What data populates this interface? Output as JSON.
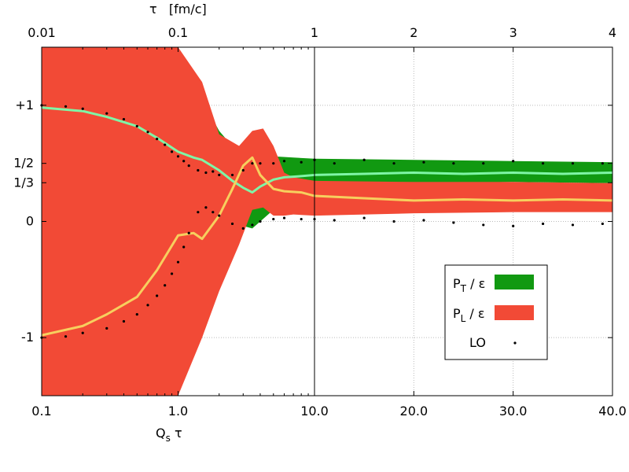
{
  "chart_data": {
    "type": "area",
    "title": "",
    "x_axis_bottom": {
      "label_main": "Q",
      "label_sub": "s",
      "label_tail": " τ",
      "segments": [
        {
          "scale": "log",
          "range": [
            0.1,
            10.0
          ]
        },
        {
          "scale": "linear",
          "range": [
            10.0,
            40.0
          ]
        }
      ],
      "ticks": [
        {
          "value": 0.1,
          "label": "0.1"
        },
        {
          "value": 1.0,
          "label": "1.0"
        },
        {
          "value": 10.0,
          "label": "10.0"
        },
        {
          "value": 20.0,
          "label": "20.0"
        },
        {
          "value": 30.0,
          "label": "30.0"
        },
        {
          "value": 40.0,
          "label": "40.0"
        }
      ]
    },
    "x_axis_top": {
      "label": "τ   [fm/c]",
      "ticks": [
        {
          "value": 0.1,
          "label": "0.01"
        },
        {
          "value": 1.0,
          "label": "0.1"
        },
        {
          "value": 10.0,
          "label": "1"
        },
        {
          "value": 20.0,
          "label": "2"
        },
        {
          "value": 30.0,
          "label": "3"
        },
        {
          "value": 40.0,
          "label": "4"
        }
      ]
    },
    "y_axis": {
      "label": "",
      "ylim": [
        -1.5,
        1.5
      ],
      "ticks": [
        {
          "value": 1.0,
          "label": "+1"
        },
        {
          "value": 0.5,
          "label": "1/2"
        },
        {
          "value": 0.3333,
          "label": "1/3"
        },
        {
          "value": 0.0,
          "label": "0"
        },
        {
          "value": -1.0,
          "label": "-1"
        }
      ]
    },
    "series": [
      {
        "name": "P_T / ε",
        "legend_main": "P",
        "legend_sub": "T",
        "legend_tail": " / ε",
        "color": "#119911",
        "kind": "band",
        "x": [
          0.1,
          0.2,
          0.4,
          0.7,
          1.0,
          1.5,
          2.0,
          2.8,
          3.5,
          5.0,
          7.0,
          10.0,
          20.0,
          30.0,
          40.0
        ],
        "upper": [
          1.5,
          1.5,
          1.5,
          1.5,
          1.32,
          1.05,
          0.78,
          0.58,
          0.57,
          0.56,
          0.55,
          0.54,
          0.53,
          0.52,
          0.51
        ],
        "lower": [
          1.5,
          1.5,
          1.5,
          1.5,
          1.05,
          0.68,
          0.32,
          -0.03,
          -0.06,
          0.1,
          0.2,
          0.3,
          0.33,
          0.34,
          0.33
        ]
      },
      {
        "name": "P_L / ε",
        "legend_main": "P",
        "legend_sub": "L",
        "legend_tail": " / ε",
        "color": "#f24a36",
        "kind": "band",
        "x": [
          0.1,
          0.2,
          0.4,
          0.7,
          1.0,
          1.5,
          2.0,
          2.8,
          3.5,
          4.2,
          5.0,
          6.0,
          7.0,
          10.0,
          20.0,
          30.0,
          40.0
        ],
        "upper": [
          1.5,
          1.5,
          1.5,
          1.5,
          1.5,
          1.2,
          0.75,
          0.65,
          0.78,
          0.8,
          0.65,
          0.42,
          0.38,
          0.35,
          0.34,
          0.34,
          0.33
        ],
        "lower": [
          -1.5,
          -1.5,
          -1.5,
          -1.5,
          -1.5,
          -1.0,
          -0.6,
          -0.2,
          0.1,
          0.12,
          0.05,
          0.05,
          0.06,
          0.05,
          0.07,
          0.08,
          0.08
        ]
      },
      {
        "name": "P_T / ε (mean)",
        "color": "#7ff5a6",
        "kind": "line",
        "x": [
          0.1,
          0.2,
          0.3,
          0.5,
          0.7,
          1.0,
          1.3,
          1.5,
          2.0,
          2.5,
          3.0,
          3.5,
          4.0,
          5.0,
          6.0,
          8.0,
          10.0,
          15.0,
          20.0,
          25.0,
          30.0,
          35.0,
          40.0
        ],
        "y": [
          0.98,
          0.95,
          0.9,
          0.82,
          0.72,
          0.6,
          0.55,
          0.53,
          0.44,
          0.35,
          0.29,
          0.25,
          0.3,
          0.36,
          0.38,
          0.39,
          0.4,
          0.41,
          0.42,
          0.41,
          0.42,
          0.41,
          0.42
        ]
      },
      {
        "name": "P_L / ε (mean)",
        "color": "#f7cf5e",
        "kind": "line",
        "x": [
          0.1,
          0.2,
          0.3,
          0.5,
          0.7,
          1.0,
          1.3,
          1.5,
          2.0,
          2.5,
          3.0,
          3.5,
          4.0,
          5.0,
          6.0,
          8.0,
          10.0,
          15.0,
          20.0,
          25.0,
          30.0,
          35.0,
          40.0
        ],
        "y": [
          -0.98,
          -0.9,
          -0.8,
          -0.65,
          -0.42,
          -0.12,
          -0.1,
          -0.15,
          0.05,
          0.28,
          0.48,
          0.55,
          0.4,
          0.28,
          0.26,
          0.25,
          0.22,
          0.2,
          0.18,
          0.19,
          0.18,
          0.19,
          0.18
        ]
      },
      {
        "name": "LO",
        "legend_main": "LO",
        "color": "#000000",
        "kind": "dots",
        "x": [
          0.1,
          0.15,
          0.2,
          0.3,
          0.4,
          0.5,
          0.6,
          0.7,
          0.8,
          0.9,
          1.0,
          1.1,
          1.2,
          1.4,
          1.6,
          1.8,
          2.0,
          2.5,
          3.0,
          3.5,
          4.0,
          5.0,
          6.0,
          8.0,
          10.0,
          12.0,
          15.0,
          18.0,
          21.0,
          24.0,
          27.0,
          30.0,
          33.0,
          36.0,
          39.0
        ],
        "y_upper": [
          1.0,
          0.99,
          0.97,
          0.93,
          0.88,
          0.82,
          0.77,
          0.71,
          0.66,
          0.6,
          0.56,
          0.52,
          0.48,
          0.44,
          0.42,
          0.43,
          0.4,
          0.4,
          0.44,
          0.5,
          0.5,
          0.5,
          0.52,
          0.51,
          0.53,
          0.5,
          0.53,
          0.5,
          0.51,
          0.5,
          0.5,
          0.52,
          0.5,
          0.5,
          0.5
        ],
        "y_lower": [
          -1.0,
          -0.99,
          -0.96,
          -0.92,
          -0.86,
          -0.8,
          -0.72,
          -0.64,
          -0.55,
          -0.45,
          -0.35,
          -0.22,
          -0.1,
          0.08,
          0.12,
          0.08,
          0.05,
          -0.02,
          -0.06,
          -0.03,
          0.0,
          0.02,
          0.03,
          0.02,
          0.02,
          0.01,
          0.03,
          0.0,
          0.01,
          -0.01,
          -0.03,
          -0.04,
          -0.02,
          -0.03,
          -0.02
        ]
      }
    ],
    "legend": {
      "position": "lower-right"
    }
  }
}
